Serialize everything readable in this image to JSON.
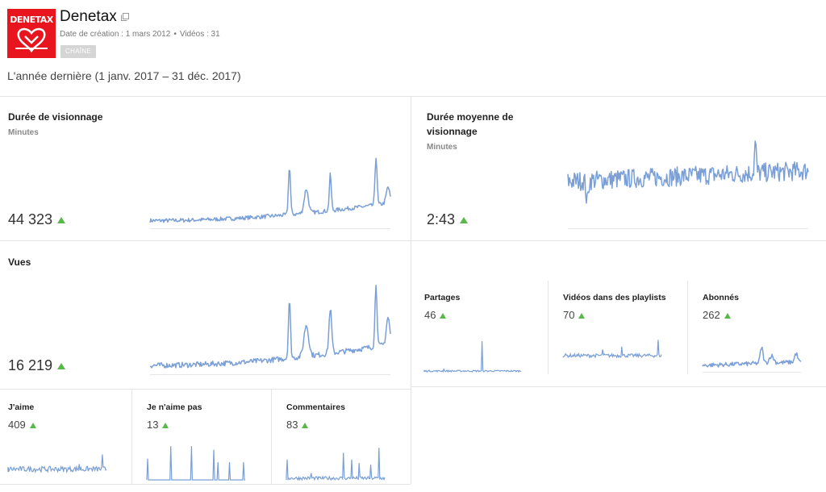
{
  "channel": {
    "logo_text": "DENETAX",
    "name": "Denetax",
    "created_label": "Date de création : 1 mars 2012",
    "videos_label": "Vidéos : 31",
    "chip": "CHAÎNE",
    "accent_color": "#e8141e"
  },
  "period": "L'année dernière (1 janv. 2017 – 31 déc. 2017)",
  "colors": {
    "spark": "#7a9fd6",
    "up_arrow": "#57b947"
  },
  "metrics": {
    "watch_time": {
      "title": "Durée de visionnage",
      "unit": "Minutes",
      "value": "44 323",
      "trend": "up"
    },
    "avg_duration": {
      "title_line1": "Durée moyenne de",
      "title_line2": "visionnage",
      "unit": "Minutes",
      "value": "2:43",
      "trend": "up"
    },
    "views": {
      "title": "Vues",
      "value": "16 219",
      "trend": "up"
    },
    "shares": {
      "title": "Partages",
      "value": "46",
      "trend": "up"
    },
    "playlist_videos": {
      "title": "Vidéos dans des playlists",
      "value": "70",
      "trend": "up"
    },
    "subscribers": {
      "title": "Abonnés",
      "value": "262",
      "trend": "up"
    },
    "likes": {
      "title": "J'aime",
      "value": "409",
      "trend": "up"
    },
    "dislikes": {
      "title": "Je n'aime pas",
      "value": "13",
      "trend": "up"
    },
    "comments": {
      "title": "Commentaires",
      "value": "83",
      "trend": "up"
    }
  }
}
